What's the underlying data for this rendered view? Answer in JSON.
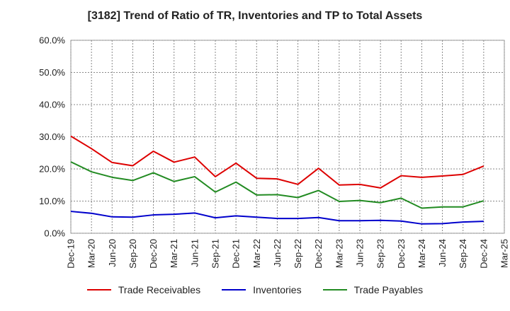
{
  "chart_data": {
    "type": "line",
    "title": "[3182]  Trend of Ratio of TR, Inventories and TP to Total Assets",
    "x_tick_labels": [
      "Dec-19",
      "Mar-20",
      "Jun-20",
      "Sep-20",
      "Dec-20",
      "Mar-21",
      "Jun-21",
      "Sep-21",
      "Dec-21",
      "Mar-22",
      "Jun-22",
      "Sep-22",
      "Dec-22",
      "Mar-23",
      "Jun-23",
      "Sep-23",
      "Dec-23",
      "Mar-24",
      "Jun-24",
      "Sep-24",
      "Dec-24",
      "Mar-25"
    ],
    "y_tick_labels": [
      "0.0%",
      "10.0%",
      "20.0%",
      "30.0%",
      "40.0%",
      "50.0%",
      "60.0%"
    ],
    "ylim": [
      0,
      60
    ],
    "grid": true,
    "legend_position": "bottom",
    "x": [
      "Dec-19",
      "Mar-20",
      "Jun-20",
      "Sep-20",
      "Dec-20",
      "Mar-21",
      "Jun-21",
      "Sep-21",
      "Dec-21",
      "Mar-22",
      "Jun-22",
      "Sep-22",
      "Dec-22",
      "Mar-23",
      "Jun-23",
      "Sep-23",
      "Dec-23",
      "Mar-24",
      "Jun-24",
      "Sep-24",
      "Dec-24"
    ],
    "series": [
      {
        "name": "Trade Receivables",
        "color": "#dd0000",
        "values": [
          30.2,
          26.3,
          22.0,
          21.0,
          25.5,
          22.1,
          23.7,
          17.6,
          21.8,
          17.1,
          16.9,
          15.2,
          20.2,
          15.0,
          15.2,
          14.1,
          17.9,
          17.4,
          17.8,
          18.3,
          20.9
        ]
      },
      {
        "name": "Inventories",
        "color": "#0000cc",
        "values": [
          6.8,
          6.2,
          5.1,
          5.0,
          5.7,
          5.9,
          6.3,
          4.8,
          5.4,
          5.0,
          4.6,
          4.6,
          4.9,
          3.9,
          3.9,
          4.0,
          3.8,
          2.9,
          3.0,
          3.5,
          3.7
        ]
      },
      {
        "name": "Trade Payables",
        "color": "#228b22",
        "values": [
          22.2,
          19.1,
          17.4,
          16.4,
          18.8,
          16.1,
          17.6,
          12.8,
          15.9,
          11.9,
          12.0,
          11.1,
          13.3,
          9.9,
          10.2,
          9.5,
          10.9,
          7.8,
          8.2,
          8.2,
          10.1
        ]
      }
    ]
  }
}
